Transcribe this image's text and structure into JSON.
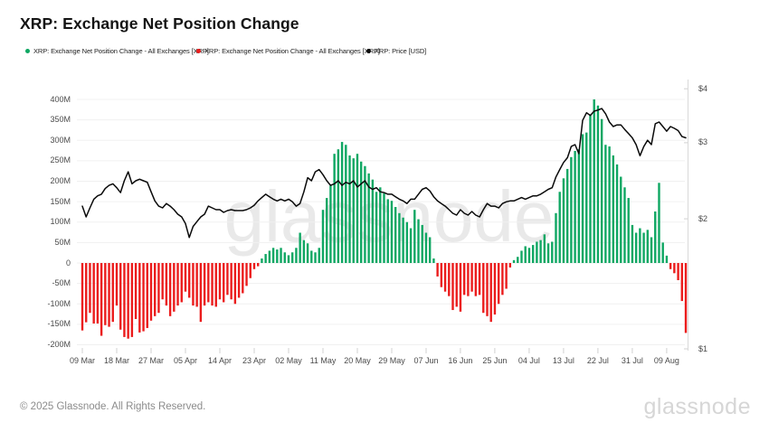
{
  "header": {
    "title": "XRP: Exchange Net Position Change"
  },
  "legend": {
    "items": [
      {
        "label": "XRP: Exchange Net Position Change - All Exchanges [XRP]",
        "color": "#0FA763",
        "marker": "dot"
      },
      {
        "label": "XRP: Exchange Net Position Change - All Exchanges [XRP]",
        "color": "#EB1C1C",
        "marker": "dot"
      },
      {
        "label": "XRP: Price [USD]",
        "color": "#0A0A0A",
        "marker": "dot"
      }
    ]
  },
  "watermark": "glassnode",
  "footer": {
    "copyright": "© 2025 Glassnode. All Rights Reserved.",
    "brand": "glassnode"
  },
  "chart_data": {
    "type": "bar+line",
    "title": "XRP: Exchange Net Position Change",
    "grid": true,
    "legend_position": "top-left",
    "x_start_label": "09 Mar",
    "x_tick_interval_days": 9,
    "x_tick_labels": [
      "09 Mar",
      "18 Mar",
      "27 Mar",
      "05 Apr",
      "14 Apr",
      "23 Apr",
      "02 May",
      "11 May",
      "20 May",
      "29 May",
      "07 Jun",
      "16 Jun",
      "25 Jun",
      "04 Jul",
      "13 Jul",
      "22 Jul",
      "31 Jul",
      "09 Aug"
    ],
    "left_axis": {
      "tick_labels": [
        "400M",
        "350M",
        "300M",
        "250M",
        "200M",
        "150M",
        "100M",
        "50M",
        "0",
        "-50M",
        "-100M",
        "-150M",
        "-200M"
      ],
      "tick_values_millions": [
        400,
        350,
        300,
        250,
        200,
        150,
        100,
        50,
        0,
        -50,
        -100,
        -150,
        -200
      ],
      "ylim_millions": [
        -200,
        400
      ]
    },
    "right_axis": {
      "tick_labels": [
        "$4",
        "$3",
        "$2",
        "$1"
      ],
      "tick_values": [
        4,
        3,
        2,
        1
      ],
      "scale": "log",
      "ylim": [
        1,
        4
      ]
    },
    "bars": {
      "name": "XRP: Exchange Net Position Change - All Exchanges [XRP]",
      "unit": "XRP, millions per day",
      "positive_color": "#0FA763",
      "negative_color": "#EB1C1C",
      "values_millions": [
        -165,
        -145,
        -122,
        -148,
        -148,
        -178,
        -152,
        -156,
        -144,
        -104,
        -163,
        -181,
        -185,
        -181,
        -137,
        -170,
        -167,
        -159,
        -141,
        -130,
        -122,
        -89,
        -104,
        -130,
        -119,
        -104,
        -96,
        -70,
        -85,
        -104,
        -107,
        -144,
        -104,
        -96,
        -104,
        -107,
        -89,
        -96,
        -78,
        -89,
        -100,
        -85,
        -74,
        -56,
        -37,
        -15,
        -8,
        11,
        22,
        30,
        37,
        33,
        37,
        26,
        19,
        26,
        37,
        74,
        56,
        48,
        30,
        26,
        37,
        130,
        159,
        189,
        267,
        278,
        296,
        289,
        263,
        256,
        267,
        248,
        237,
        219,
        204,
        174,
        185,
        170,
        156,
        152,
        137,
        122,
        111,
        100,
        85,
        130,
        107,
        93,
        74,
        63,
        11,
        -33,
        -59,
        -70,
        -81,
        -115,
        -107,
        -119,
        -78,
        -81,
        -70,
        -81,
        -78,
        -122,
        -130,
        -144,
        -126,
        -100,
        -78,
        -63,
        -11,
        7,
        15,
        30,
        41,
        37,
        44,
        52,
        56,
        70,
        48,
        52,
        122,
        174,
        207,
        230,
        259,
        274,
        278,
        315,
        319,
        363,
        400,
        385,
        352,
        289,
        285,
        263,
        241,
        211,
        185,
        159,
        93,
        74,
        85,
        74,
        81,
        63,
        126,
        196,
        50,
        18,
        -15,
        -25,
        -42,
        -93,
        -171
      ]
    },
    "price": {
      "name": "XRP: Price [USD]",
      "color": "#0A0A0A",
      "scale": "log",
      "values_usd": [
        2.14,
        2.02,
        2.12,
        2.22,
        2.26,
        2.28,
        2.35,
        2.39,
        2.41,
        2.36,
        2.3,
        2.45,
        2.57,
        2.41,
        2.45,
        2.47,
        2.45,
        2.43,
        2.31,
        2.2,
        2.14,
        2.12,
        2.17,
        2.14,
        2.1,
        2.05,
        2.02,
        1.95,
        1.81,
        1.92,
        1.97,
        2.02,
        2.05,
        2.14,
        2.12,
        2.1,
        2.1,
        2.07,
        2.09,
        2.1,
        2.09,
        2.09,
        2.09,
        2.1,
        2.12,
        2.15,
        2.2,
        2.24,
        2.28,
        2.25,
        2.22,
        2.2,
        2.22,
        2.2,
        2.22,
        2.19,
        2.14,
        2.17,
        2.31,
        2.49,
        2.45,
        2.57,
        2.6,
        2.53,
        2.45,
        2.39,
        2.41,
        2.45,
        2.39,
        2.43,
        2.41,
        2.45,
        2.37,
        2.41,
        2.45,
        2.37,
        2.34,
        2.36,
        2.31,
        2.3,
        2.28,
        2.28,
        2.25,
        2.22,
        2.2,
        2.17,
        2.22,
        2.22,
        2.28,
        2.34,
        2.36,
        2.32,
        2.25,
        2.2,
        2.17,
        2.14,
        2.1,
        2.06,
        2.04,
        2.1,
        2.06,
        2.04,
        2.08,
        2.04,
        2.02,
        2.1,
        2.17,
        2.14,
        2.14,
        2.12,
        2.17,
        2.19,
        2.2,
        2.2,
        2.22,
        2.24,
        2.22,
        2.24,
        2.26,
        2.26,
        2.28,
        2.31,
        2.34,
        2.36,
        2.5,
        2.6,
        2.7,
        2.77,
        2.94,
        2.97,
        2.83,
        3.38,
        3.52,
        3.47,
        3.55,
        3.57,
        3.6,
        3.5,
        3.35,
        3.27,
        3.3,
        3.3,
        3.22,
        3.15,
        3.08,
        2.97,
        2.8,
        2.94,
        3.04,
        2.97,
        3.32,
        3.35,
        3.27,
        3.19,
        3.27,
        3.24,
        3.2,
        3.1,
        3.08
      ]
    }
  }
}
